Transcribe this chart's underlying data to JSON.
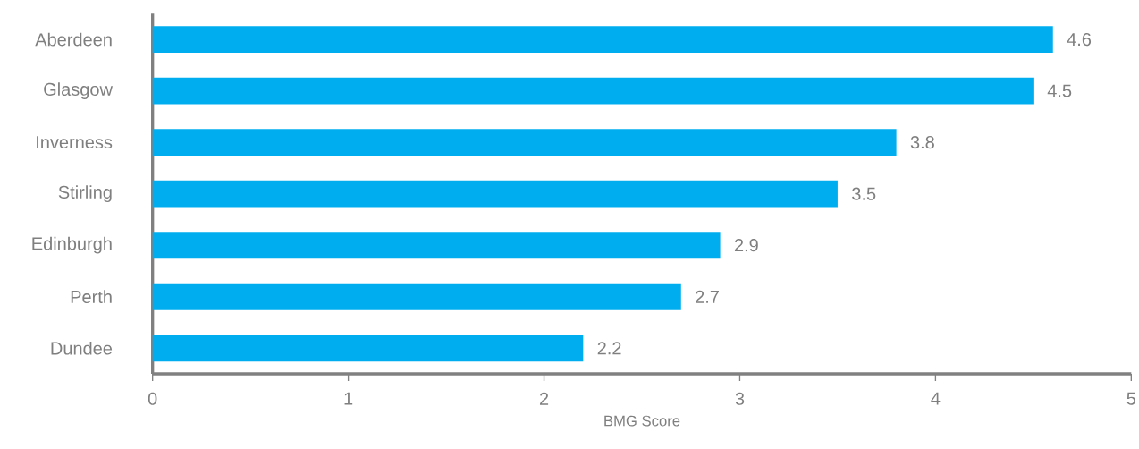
{
  "chart_data": {
    "type": "bar",
    "orientation": "horizontal",
    "xlabel": "BMG Score",
    "categories": [
      "Aberdeen",
      "Glasgow",
      "Inverness",
      "Stirling",
      "Edinburgh",
      "Perth",
      "Dundee"
    ],
    "values": [
      4.6,
      4.5,
      3.8,
      3.5,
      2.9,
      2.7,
      2.2
    ],
    "color": "#00aeef",
    "xlim": [
      0,
      5
    ],
    "xticks": [
      0,
      1,
      2,
      3,
      4,
      5
    ],
    "data_labels": true
  }
}
